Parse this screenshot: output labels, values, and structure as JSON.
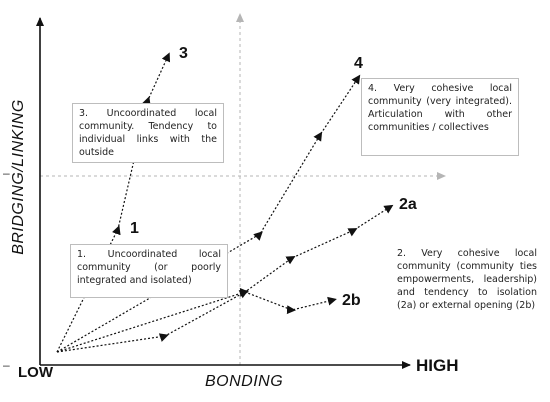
{
  "axes": {
    "y_label": "BRIDGING/LINKING",
    "x_label": "BONDING",
    "low_label": "LOW",
    "high_label": "HIGH",
    "y_tick": "–",
    "x_tick": "–"
  },
  "markers": {
    "m1": "1",
    "m2a": "2a",
    "m2b": "2b",
    "m3": "3",
    "m4": "4"
  },
  "boxes": {
    "box1": "1. Uncoordinated local community (or poorly integrated and isolated)",
    "box2": "2. Very cohesive local community (community ties empowerments, leadership) and tendency to isolation (2a) or external opening (2b)",
    "box3": "3. Uncoordinated local community. Tendency to individual links with the outside",
    "box4": "4. Very cohesive local community (very integrated). Articulation with other communities / collectives"
  },
  "colors": {
    "axis": "#111111",
    "guide": "#b5b5b5",
    "path": "#111111",
    "box_border": "#bdbdbd"
  }
}
